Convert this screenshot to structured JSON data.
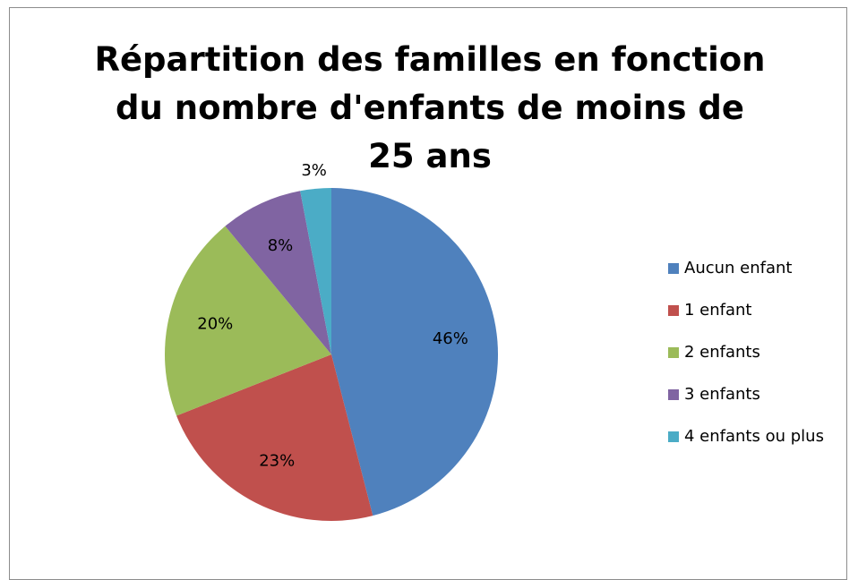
{
  "chart_data": {
    "type": "pie",
    "title": "Répartition des familles en fonction du nombre d'enfants de moins de 25 ans",
    "categories": [
      "Aucun enfant",
      "1 enfant",
      "2 enfants",
      "3 enfants",
      "4 enfants ou plus"
    ],
    "values": [
      46,
      23,
      20,
      8,
      3
    ],
    "value_labels": [
      "46%",
      "23%",
      "20%",
      "8%",
      "3%"
    ],
    "colors": [
      "#4f81bd",
      "#c0504d",
      "#9bbb59",
      "#8064a2",
      "#4bacc6"
    ],
    "legend": "right"
  }
}
